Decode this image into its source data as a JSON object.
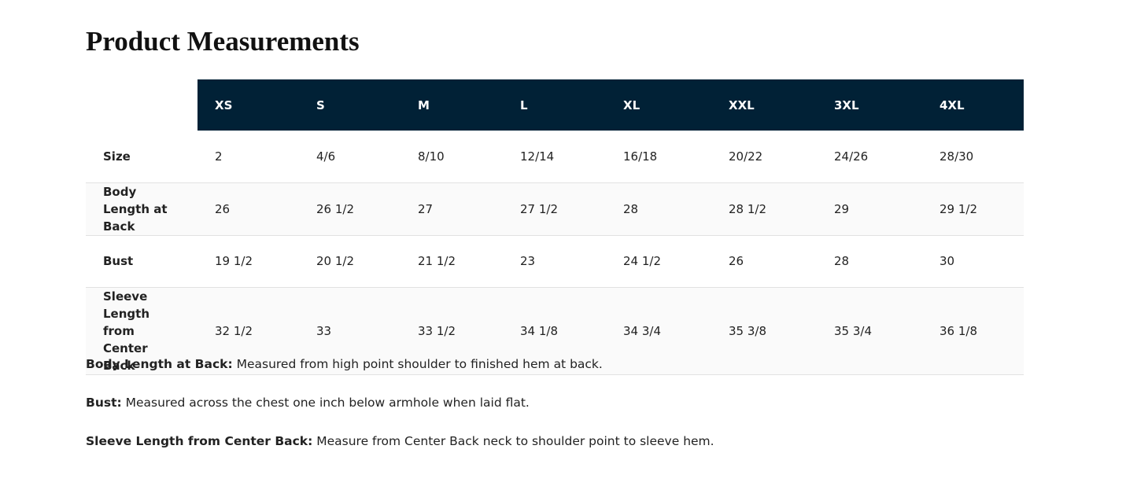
{
  "title": "Product Measurements",
  "table": {
    "header": [
      "XS",
      "S",
      "M",
      "L",
      "XL",
      "XXL",
      "3XL",
      "4XL"
    ],
    "rows": [
      {
        "label": "Size",
        "cells": [
          "2",
          "4/6",
          "8/10",
          "12/14",
          "16/18",
          "20/22",
          "24/26",
          "28/30"
        ]
      },
      {
        "label": "Body Length at Back",
        "cells": [
          "26",
          "26 1/2",
          "27",
          "27 1/2",
          "28",
          "28 1/2",
          "29",
          "29 1/2"
        ]
      },
      {
        "label": "Bust",
        "cells": [
          "19 1/2",
          "20 1/2",
          "21 1/2",
          "23",
          "24 1/2",
          "26",
          "28",
          "30"
        ]
      },
      {
        "label": "Sleeve Length from Center Back",
        "cells": [
          "32 1/2",
          "33",
          "33 1/2",
          "34 1/8",
          "34 3/4",
          "35 3/8",
          "35 3/4",
          "36 1/8"
        ]
      }
    ]
  },
  "notes": [
    {
      "term": "Body Length at Back:",
      "text": "Measured from high point shoulder to finished hem at back."
    },
    {
      "term": "Bust:",
      "text": "Measured across the chest one inch below armhole when laid flat."
    },
    {
      "term": "Sleeve Length from Center Back:",
      "text": "Measure from Center Back neck to shoulder point to sleeve hem."
    }
  ]
}
